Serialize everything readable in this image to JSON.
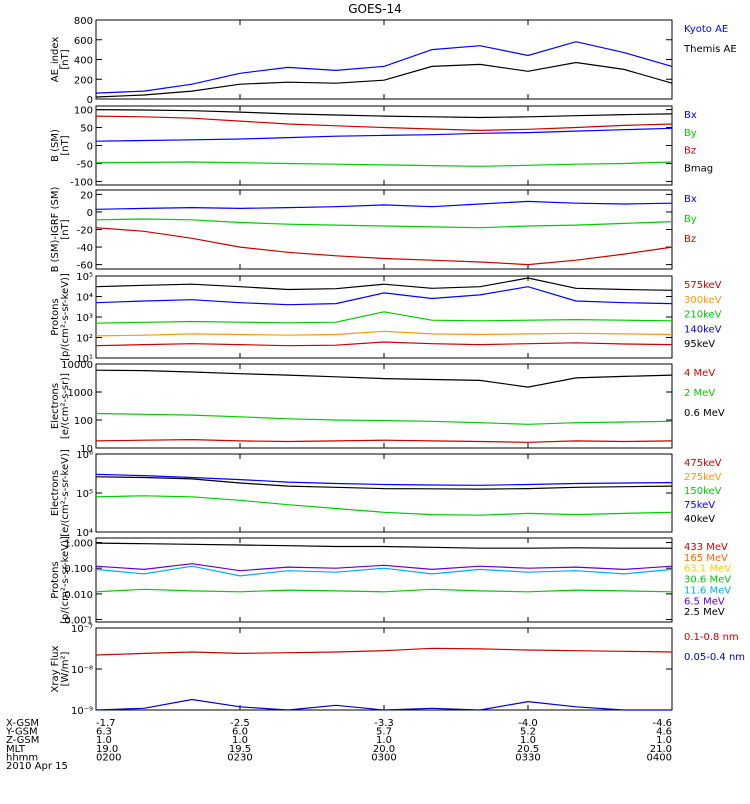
{
  "title": "GOES-14",
  "date_label": "2010 Apr 15",
  "chart_data": [
    {
      "type": "line",
      "ylabel": "AE_index\n[nT]",
      "y_scale": "linear",
      "ylim": [
        0,
        800
      ],
      "yticks": [
        0,
        200,
        400,
        600,
        800
      ],
      "ytick_labels": [
        "0",
        "200",
        "400",
        "600",
        "800"
      ],
      "x_time_minutes": [
        0,
        10,
        20,
        30,
        40,
        50,
        60,
        70,
        80,
        90,
        100,
        110,
        120
      ],
      "series": [
        {
          "name": "Kyoto AE",
          "color": "#0000ff",
          "values": [
            60,
            80,
            150,
            260,
            320,
            290,
            330,
            500,
            540,
            440,
            580,
            470,
            330
          ]
        },
        {
          "name": "Themis AE",
          "color": "#000000",
          "values": [
            20,
            40,
            80,
            150,
            170,
            160,
            190,
            330,
            350,
            280,
            370,
            300,
            160
          ]
        }
      ]
    },
    {
      "type": "line",
      "ylabel": "B (SM)\n[nT]",
      "y_scale": "linear",
      "ylim": [
        -110,
        110
      ],
      "yticks": [
        -100,
        -50,
        0,
        50,
        100
      ],
      "ytick_labels": [
        "-100",
        "-50",
        "0",
        "50",
        "100"
      ],
      "x_time_minutes": [
        0,
        10,
        20,
        30,
        40,
        50,
        60,
        70,
        80,
        90,
        100,
        110,
        120
      ],
      "series": [
        {
          "name": "Bx",
          "color": "#0000ff",
          "values": [
            12,
            14,
            16,
            18,
            22,
            26,
            28,
            30,
            34,
            36,
            40,
            44,
            48
          ]
        },
        {
          "name": "By",
          "color": "#00cc00",
          "values": [
            -48,
            -47,
            -46,
            -48,
            -50,
            -52,
            -54,
            -56,
            -58,
            -55,
            -52,
            -50,
            -46
          ]
        },
        {
          "name": "Bz",
          "color": "#cc0000",
          "values": [
            82,
            80,
            76,
            68,
            60,
            55,
            50,
            46,
            42,
            45,
            50,
            56,
            60
          ]
        },
        {
          "name": "Bmag",
          "color": "#000000",
          "values": [
            100,
            99,
            97,
            93,
            88,
            85,
            82,
            80,
            78,
            80,
            83,
            86,
            88
          ]
        }
      ]
    },
    {
      "type": "line",
      "ylabel": "B (SM)-IGRF (SM)\n[nT]",
      "y_scale": "linear",
      "ylim": [
        -65,
        25
      ],
      "yticks": [
        -60,
        -40,
        -20,
        0,
        20
      ],
      "ytick_labels": [
        "-60",
        "-40",
        "-20",
        "0",
        "20"
      ],
      "x_time_minutes": [
        0,
        10,
        20,
        30,
        40,
        50,
        60,
        70,
        80,
        90,
        100,
        110,
        120
      ],
      "series": [
        {
          "name": "Bx",
          "color": "#0000ff",
          "values": [
            3,
            4,
            5,
            4,
            5,
            6,
            8,
            6,
            9,
            12,
            10,
            9,
            10
          ]
        },
        {
          "name": "By",
          "color": "#00cc00",
          "values": [
            -9,
            -8,
            -9,
            -12,
            -14,
            -15,
            -16,
            -17,
            -18,
            -16,
            -15,
            -13,
            -11
          ]
        },
        {
          "name": "Bz",
          "color": "#cc0000",
          "values": [
            -18,
            -22,
            -30,
            -40,
            -46,
            -50,
            -53,
            -55,
            -57,
            -60,
            -55,
            -48,
            -40
          ]
        }
      ]
    },
    {
      "type": "line",
      "ylabel": "Protons\n[p/(cm²-s-sr-keV)]",
      "y_scale": "log",
      "ylim": [
        10,
        100000
      ],
      "yticks": [
        10,
        100,
        1000,
        10000,
        100000
      ],
      "ytick_labels": [
        "10¹",
        "10²",
        "10³",
        "10⁴",
        "10⁵"
      ],
      "x_time_minutes": [
        0,
        10,
        20,
        30,
        40,
        50,
        60,
        70,
        80,
        90,
        100,
        110,
        120
      ],
      "series": [
        {
          "name": "575keV",
          "color": "#cc0000",
          "values": [
            40,
            45,
            50,
            45,
            40,
            42,
            60,
            50,
            45,
            50,
            55,
            48,
            45
          ]
        },
        {
          "name": "300keV",
          "color": "#ff9900",
          "values": [
            120,
            130,
            150,
            140,
            130,
            140,
            200,
            150,
            140,
            150,
            160,
            150,
            140
          ]
        },
        {
          "name": "210keV",
          "color": "#00cc00",
          "values": [
            500,
            550,
            600,
            560,
            520,
            560,
            1800,
            700,
            650,
            700,
            750,
            700,
            650
          ]
        },
        {
          "name": "140keV",
          "color": "#0000ff",
          "values": [
            5000,
            6000,
            7000,
            5000,
            4000,
            4500,
            15000,
            8000,
            12000,
            30000,
            6000,
            5000,
            4500
          ]
        },
        {
          "name": "95keV",
          "color": "#000000",
          "values": [
            30000,
            35000,
            40000,
            30000,
            22000,
            24000,
            40000,
            25000,
            30000,
            80000,
            25000,
            22000,
            20000
          ]
        }
      ]
    },
    {
      "type": "line",
      "ylabel": "Electrons\n[e/(cm²-s-sr)]",
      "y_scale": "log",
      "ylim": [
        10,
        10000
      ],
      "yticks": [
        10,
        100,
        1000,
        10000
      ],
      "ytick_labels": [
        "10",
        "100",
        "1000",
        "10000"
      ],
      "x_time_minutes": [
        0,
        10,
        20,
        30,
        40,
        50,
        60,
        70,
        80,
        90,
        100,
        110,
        120
      ],
      "series": [
        {
          "name": "4 MeV",
          "color": "#cc0000",
          "values": [
            18,
            19,
            20,
            18,
            17,
            18,
            19,
            18,
            17,
            16,
            18,
            17,
            18
          ]
        },
        {
          "name": "2 MeV",
          "color": "#00cc00",
          "values": [
            170,
            160,
            150,
            130,
            110,
            100,
            95,
            90,
            80,
            70,
            80,
            85,
            90
          ]
        },
        {
          "name": "0.6 MeV",
          "color": "#000000",
          "values": [
            6000,
            5800,
            5200,
            4500,
            4000,
            3500,
            3000,
            2800,
            2600,
            1500,
            3200,
            3600,
            4000
          ]
        }
      ]
    },
    {
      "type": "line",
      "ylabel": "Electrons\n[e/(cm²-s-sr-keV)]",
      "y_scale": "log",
      "ylim": [
        10000,
        1000000
      ],
      "yticks": [
        10000,
        100000,
        1000000
      ],
      "ytick_labels": [
        "10⁴",
        "10⁵",
        "10⁶"
      ],
      "x_time_minutes": [
        0,
        10,
        20,
        30,
        40,
        50,
        60,
        70,
        80,
        90,
        100,
        110,
        120
      ],
      "series": [
        {
          "name": "475keV",
          "color": "#cc0000",
          "values": []
        },
        {
          "name": "275keV",
          "color": "#ff9900",
          "values": []
        },
        {
          "name": "150keV",
          "color": "#00cc00",
          "values": [
            80000,
            85000,
            80000,
            65000,
            50000,
            40000,
            32000,
            28000,
            27000,
            30000,
            28000,
            30000,
            32000
          ]
        },
        {
          "name": "75keV",
          "color": "#0000ff",
          "values": [
            300000,
            280000,
            250000,
            220000,
            190000,
            175000,
            165000,
            160000,
            158000,
            165000,
            175000,
            180000,
            185000
          ]
        },
        {
          "name": "40keV",
          "color": "#000000",
          "values": [
            260000,
            250000,
            230000,
            180000,
            150000,
            140000,
            130000,
            128000,
            126000,
            130000,
            140000,
            145000,
            150000
          ]
        }
      ]
    },
    {
      "type": "line",
      "ylabel": "Protons\n[p/(cm²-s-sr-keV)]",
      "y_scale": "log",
      "ylim": [
        0.0008,
        1.5
      ],
      "yticks": [
        0.001,
        0.01,
        0.1,
        1
      ],
      "ytick_labels": [
        "0.001",
        "0.010",
        "0.100",
        "1.000"
      ],
      "x_time_minutes": [
        0,
        10,
        20,
        30,
        40,
        50,
        60,
        70,
        80,
        90,
        100,
        110,
        120
      ],
      "series": [
        {
          "name": "433 MeV",
          "color": "#cc0000",
          "values": []
        },
        {
          "name": "165 MeV",
          "color": "#ff6600",
          "values": []
        },
        {
          "name": "63.1 MeV",
          "color": "#ffcc00",
          "values": []
        },
        {
          "name": "30.6 MeV",
          "color": "#00cc00",
          "values": [
            0.012,
            0.015,
            0.013,
            0.012,
            0.014,
            0.013,
            0.012,
            0.015,
            0.013,
            0.012,
            0.014,
            0.013,
            0.012
          ]
        },
        {
          "name": "11.6 MeV",
          "color": "#00aaff",
          "values": [
            0.09,
            0.06,
            0.12,
            0.05,
            0.08,
            0.07,
            0.1,
            0.06,
            0.09,
            0.07,
            0.08,
            0.06,
            0.09
          ]
        },
        {
          "name": "6.5 MeV",
          "color": "#6600cc",
          "values": [
            0.12,
            0.09,
            0.15,
            0.08,
            0.11,
            0.1,
            0.13,
            0.09,
            0.12,
            0.1,
            0.11,
            0.09,
            0.12
          ]
        },
        {
          "name": "2.5 MeV",
          "color": "#000000",
          "values": [
            0.95,
            0.9,
            0.85,
            0.8,
            0.75,
            0.7,
            0.7,
            0.65,
            0.6,
            0.6,
            0.62,
            0.6,
            0.6
          ]
        }
      ]
    },
    {
      "type": "line",
      "ylabel": "Xray Flux\n[W/m²]",
      "y_scale": "log",
      "ylim": [
        1e-09,
        1e-07
      ],
      "yticks": [
        1e-09,
        1e-08,
        1e-07
      ],
      "ytick_labels": [
        "10⁻⁹",
        "10⁻⁸",
        "10⁻⁷"
      ],
      "x_time_minutes": [
        0,
        10,
        20,
        30,
        40,
        50,
        60,
        70,
        80,
        90,
        100,
        110,
        120
      ],
      "series": [
        {
          "name": "0.1-0.8 nm",
          "color": "#cc0000",
          "values": [
            2.2e-08,
            2.4e-08,
            2.6e-08,
            2.4e-08,
            2.5e-08,
            2.6e-08,
            2.8e-08,
            3.2e-08,
            3.1e-08,
            2.9e-08,
            2.8e-08,
            2.7e-08,
            2.6e-08
          ]
        },
        {
          "name": "0.05-0.4 nm",
          "color": "#0000cc",
          "values": [
            1e-09,
            1.1e-09,
            1.8e-09,
            1.2e-09,
            1e-09,
            1.3e-09,
            1e-09,
            1.1e-09,
            1e-09,
            1.6e-09,
            1.2e-09,
            1e-09,
            1e-09
          ]
        }
      ]
    }
  ],
  "footer": {
    "row_labels": [
      "X-GSM",
      "Y-GSM",
      "Z-GSM",
      "MLT",
      "hhmm"
    ],
    "columns": [
      [
        "-1.7",
        "6.3",
        "1.0",
        "19.0",
        "0200"
      ],
      [
        "-2.5",
        "6.0",
        "1.0",
        "19.5",
        "0230"
      ],
      [
        "-3.3",
        "5.7",
        "1.0",
        "20.0",
        "0300"
      ],
      [
        "-4.0",
        "5.2",
        "1.0",
        "20.5",
        "0330"
      ],
      [
        "-4.6",
        "4.6",
        "1.0",
        "21.0",
        "0400"
      ]
    ]
  }
}
